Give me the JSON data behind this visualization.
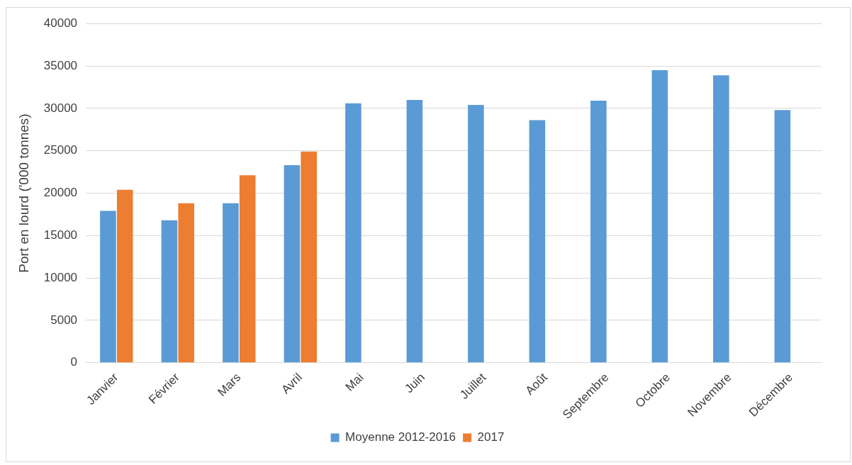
{
  "chart_data": {
    "type": "bar",
    "ylabel": "Port en lourd ('000 tonnes)",
    "categories": [
      "Janvier",
      "Février",
      "Mars",
      "Avril",
      "Mai",
      "Juin",
      "Juillet",
      "Août",
      "Septembre",
      "Octobre",
      "Novembre",
      "Décembre"
    ],
    "series": [
      {
        "name": "Moyenne 2012-2016",
        "color": "#5b9bd5",
        "values": [
          17900,
          16800,
          18800,
          23300,
          30600,
          31000,
          30400,
          28600,
          30900,
          34500,
          33900,
          29800
        ]
      },
      {
        "name": "2017",
        "color": "#ed7d31",
        "values": [
          20400,
          18800,
          22100,
          24900,
          null,
          null,
          null,
          null,
          null,
          null,
          null,
          null
        ]
      }
    ],
    "ylim": [
      0,
      40000
    ],
    "yticks": [
      0,
      5000,
      10000,
      15000,
      20000,
      25000,
      30000,
      35000,
      40000
    ],
    "grid": "y",
    "legend": "bottom"
  }
}
